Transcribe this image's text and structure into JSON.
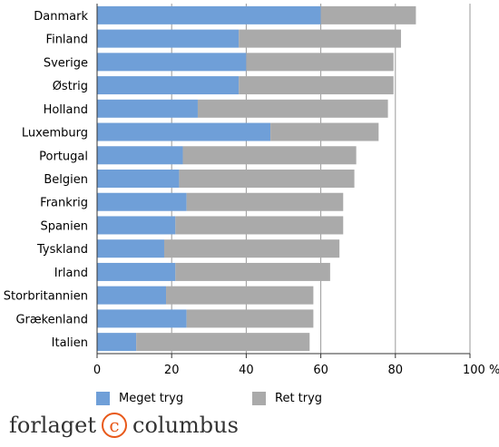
{
  "chart_data": {
    "type": "bar",
    "orientation": "horizontal",
    "stacked": true,
    "categories": [
      "Danmark",
      "Finland",
      "Sverige",
      "Østrig",
      "Holland",
      "Luxemburg",
      "Portugal",
      "Belgien",
      "Frankrig",
      "Spanien",
      "Tyskland",
      "Irland",
      "Storbritannien",
      "Grækenland",
      "Italien"
    ],
    "series": [
      {
        "name": "Meget tryg",
        "color": "#6f9fd8",
        "values": [
          60,
          38,
          40,
          38,
          27,
          46.5,
          23,
          22,
          24,
          21,
          18,
          21,
          18.5,
          24,
          10.5
        ]
      },
      {
        "name": "Ret tryg",
        "color": "#aaaaaa",
        "values": [
          25.5,
          43.5,
          39.5,
          41.5,
          51,
          29,
          46.5,
          47,
          42,
          45,
          47,
          41.5,
          39.5,
          34,
          46.5
        ]
      }
    ],
    "xlim": [
      0,
      100
    ],
    "xticks": [
      "0",
      "20",
      "40",
      "60",
      "80",
      "100 %"
    ],
    "grid": true,
    "legend_position": "bottom"
  },
  "brand": {
    "left": "forlaget",
    "mark": "c",
    "right": "columbus"
  }
}
